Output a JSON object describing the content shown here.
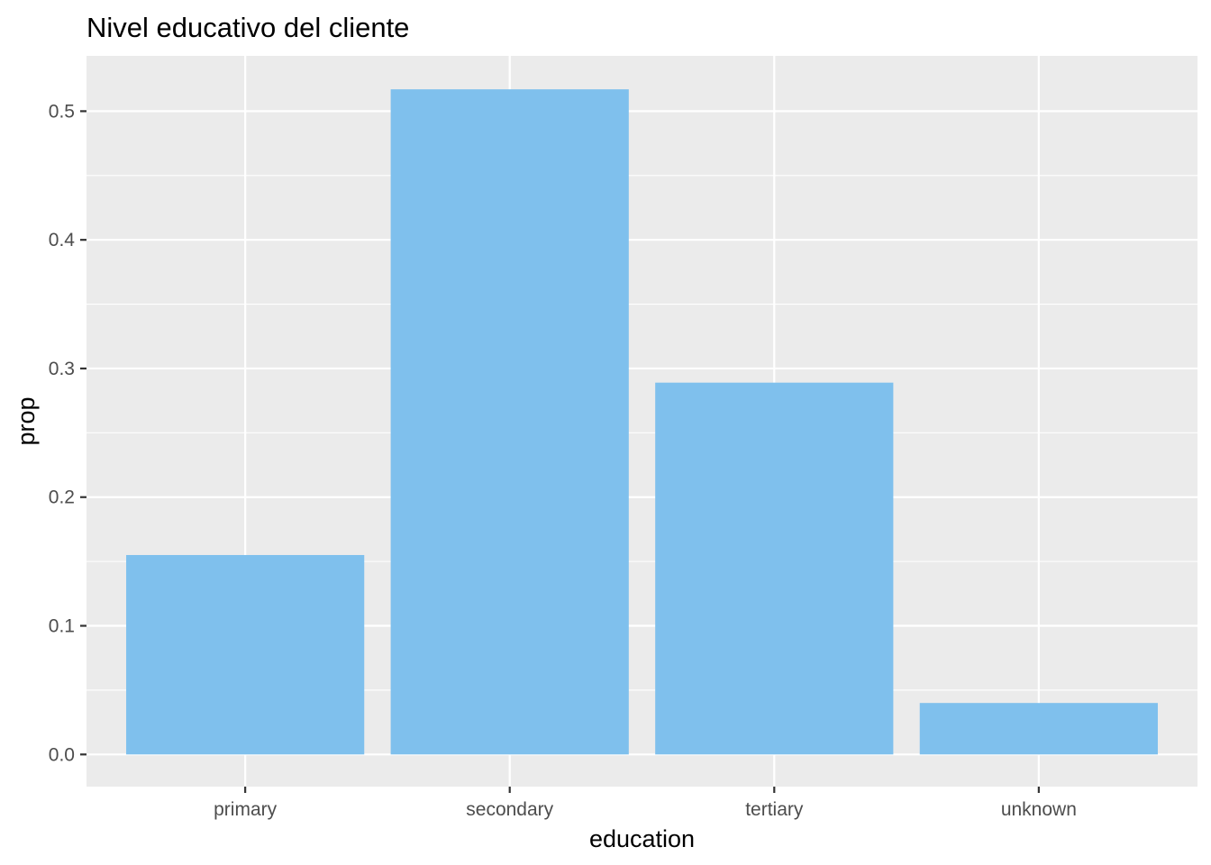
{
  "chart_data": {
    "type": "bar",
    "title": "Nivel educativo del cliente",
    "xlabel": "education",
    "ylabel": "prop",
    "categories": [
      "primary",
      "secondary",
      "tertiary",
      "unknown"
    ],
    "values": [
      0.155,
      0.517,
      0.289,
      0.04
    ],
    "ylim": [
      -0.025,
      0.543
    ],
    "y_ticks": [
      0.0,
      0.1,
      0.2,
      0.3,
      0.4,
      0.5
    ],
    "y_tick_labels": [
      "0.0",
      "0.1",
      "0.2",
      "0.3",
      "0.4",
      "0.5"
    ],
    "grid": true,
    "bar_color": "#7FC0ED",
    "panel_color": "#EBEBEB",
    "grid_color": "#FFFFFF"
  }
}
